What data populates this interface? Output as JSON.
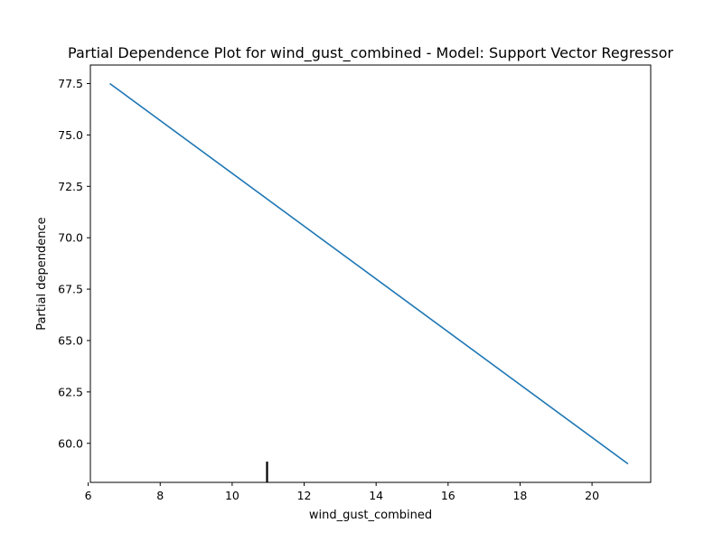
{
  "chart_data": {
    "type": "line",
    "title": "Partial Dependence Plot for wind_gust_combined - Model: Support Vector Regressor",
    "xlabel": "wind_gust_combined",
    "ylabel": "Partial dependence",
    "xlim": [
      6.06,
      21.63
    ],
    "ylim": [
      58.1,
      78.4
    ],
    "xticks": [
      6,
      8,
      10,
      12,
      14,
      16,
      18,
      20
    ],
    "xtick_labels": [
      "6",
      "8",
      "10",
      "12",
      "14",
      "16",
      "18",
      "20"
    ],
    "yticks": [
      60.0,
      62.5,
      65.0,
      67.5,
      70.0,
      72.5,
      75.0,
      77.5
    ],
    "ytick_labels": [
      "60.0",
      "62.5",
      "65.0",
      "67.5",
      "70.0",
      "72.5",
      "75.0",
      "77.5"
    ],
    "grid": false,
    "series": [
      {
        "x": [
          6.6,
          21.0
        ],
        "y": [
          77.5,
          59.0
        ],
        "color": "#1f77b4"
      }
    ],
    "rug": {
      "x": [
        10.97
      ],
      "color": "#000000"
    }
  }
}
